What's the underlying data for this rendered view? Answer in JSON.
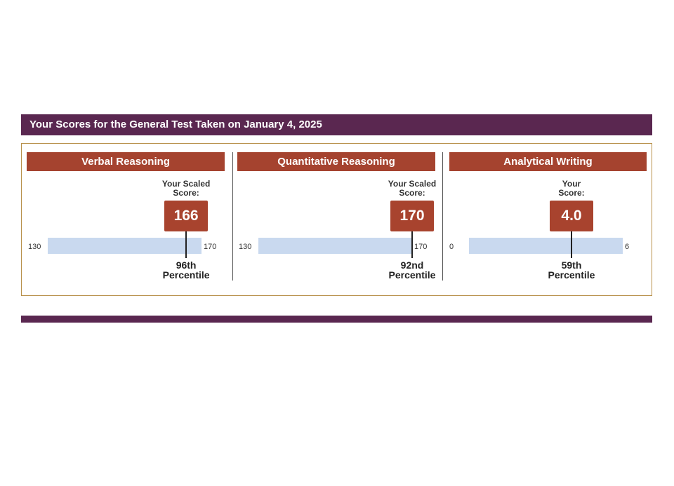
{
  "header": {
    "title": "Your Scores for the General Test Taken on January 4, 2025"
  },
  "sections": [
    {
      "name": "Verbal Reasoning",
      "score_label": [
        "Your Scaled",
        "Score:"
      ],
      "score": 166,
      "scale": {
        "min": 130,
        "max": 170
      },
      "percentile": [
        "96th",
        "Percentile"
      ]
    },
    {
      "name": "Quantitative Reasoning",
      "score_label": [
        "Your Scaled",
        "Score:"
      ],
      "score": 170,
      "scale": {
        "min": 130,
        "max": 170
      },
      "percentile": [
        "92nd",
        "Percentile"
      ]
    },
    {
      "name": "Analytical Writing",
      "score_label": [
        "Your",
        "Score:"
      ],
      "score": {
        "value": 4,
        "label": "4.0"
      },
      "scale": {
        "min": 0,
        "max": 6
      },
      "percentile": [
        "59th",
        "Percentile"
      ]
    }
  ]
}
